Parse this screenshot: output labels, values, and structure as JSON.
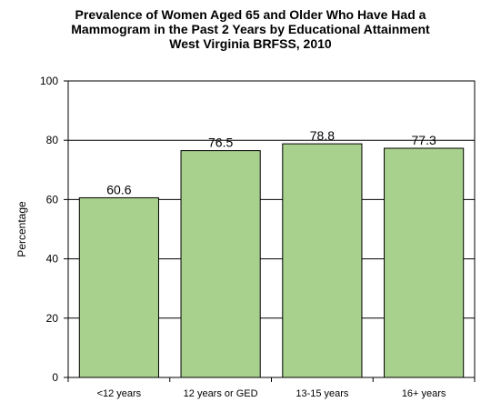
{
  "chart_data": {
    "type": "bar",
    "title_lines": [
      "Prevalence of Women Aged 65 and Older Who Have Had a",
      "Mammogram in the Past 2 Years by Educational Attainment",
      "West Virginia BRFSS, 2010"
    ],
    "xlabel": "",
    "ylabel": "Percentage",
    "categories": [
      "<12 years",
      "12 years or GED",
      "13-15 years",
      "16+ years"
    ],
    "values": [
      60.6,
      76.5,
      78.8,
      77.3
    ],
    "value_labels": [
      "60.6",
      "76.5",
      "78.8",
      "77.3"
    ],
    "ylim": [
      0,
      100
    ],
    "yticks": [
      0,
      20,
      40,
      60,
      80,
      100
    ],
    "grid": true,
    "legend": "none",
    "colors": {
      "bar_fill": "#a9d18e",
      "bar_stroke": "#000000",
      "grid": "#000000"
    }
  }
}
